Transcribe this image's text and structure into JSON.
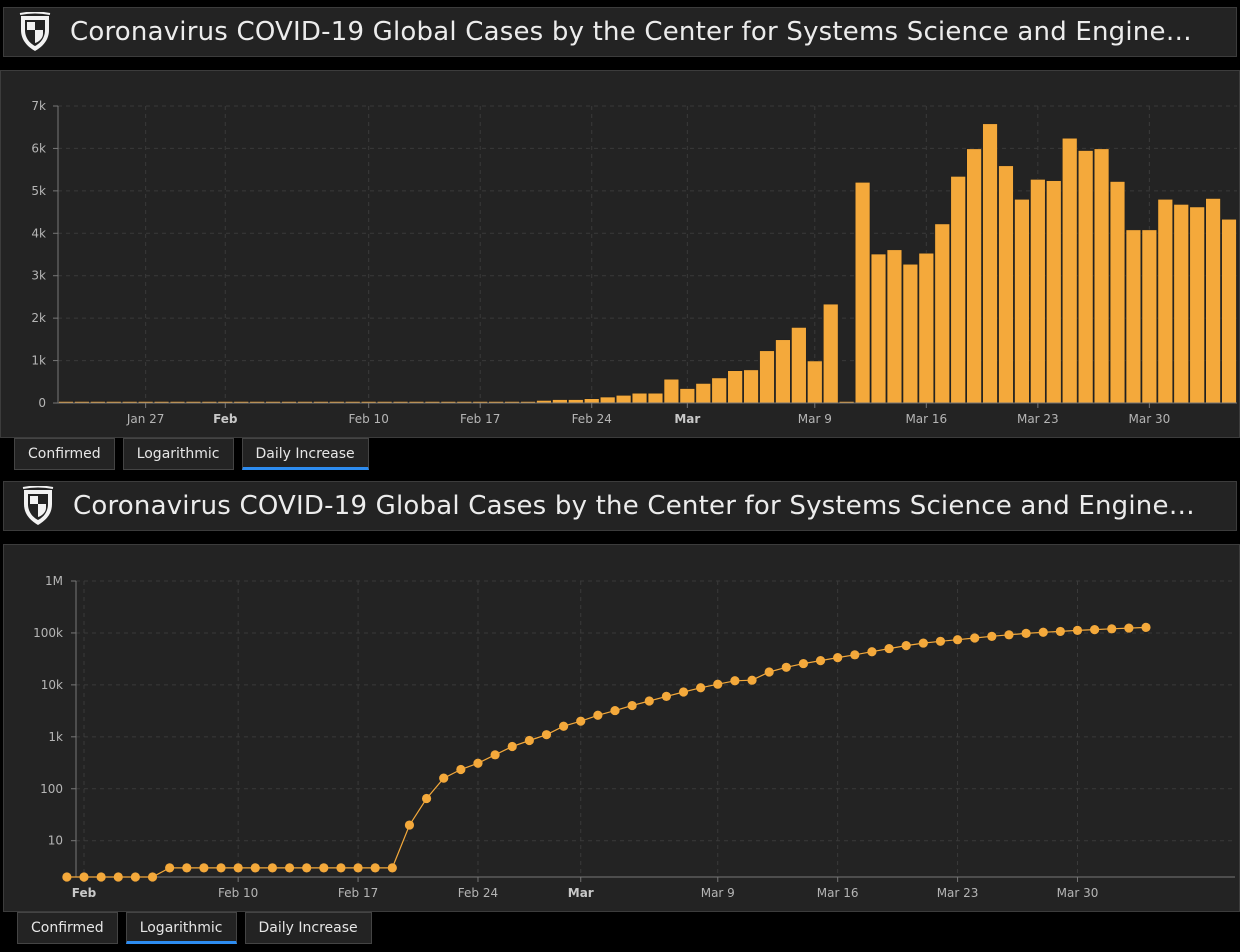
{
  "header": {
    "title": "Coronavirus COVID-19 Global Cases by the Center for Systems Science and Engineering…"
  },
  "tabs": [
    {
      "label": "Confirmed"
    },
    {
      "label": "Logarithmic"
    },
    {
      "label": "Daily Increase"
    }
  ],
  "colors": {
    "series": "#f4a93b",
    "accent": "#2d8cf0",
    "panel": "#232323"
  },
  "chart_data": [
    {
      "type": "bar",
      "title": "Daily Increase",
      "active_tab": "Daily Increase",
      "x_start": "Jan 22",
      "x_end": "Apr 2",
      "ylim": [
        0,
        7000
      ],
      "y_ticks": [
        {
          "v": 0,
          "label": "0"
        },
        {
          "v": 1000,
          "label": "1k"
        },
        {
          "v": 2000,
          "label": "2k"
        },
        {
          "v": 3000,
          "label": "3k"
        },
        {
          "v": 4000,
          "label": "4k"
        },
        {
          "v": 5000,
          "label": "5k"
        },
        {
          "v": 6000,
          "label": "6k"
        },
        {
          "v": 7000,
          "label": "7k"
        }
      ],
      "x_ticks": [
        {
          "day": 5,
          "label": "Jan 27",
          "bold": false
        },
        {
          "day": 10,
          "label": "Feb",
          "bold": true
        },
        {
          "day": 19,
          "label": "Feb 10",
          "bold": false
        },
        {
          "day": 26,
          "label": "Feb 17",
          "bold": false
        },
        {
          "day": 33,
          "label": "Feb 24",
          "bold": false
        },
        {
          "day": 39,
          "label": "Mar",
          "bold": true
        },
        {
          "day": 47,
          "label": "Mar 9",
          "bold": false
        },
        {
          "day": 54,
          "label": "Mar 16",
          "bold": false
        },
        {
          "day": 61,
          "label": "Mar 23",
          "bold": false
        },
        {
          "day": 68,
          "label": "Mar 30",
          "bold": false
        }
      ],
      "values": [
        0,
        0,
        0,
        0,
        0,
        0,
        0,
        0,
        0,
        0,
        0,
        0,
        0,
        0,
        0,
        0,
        0,
        0,
        0,
        0,
        0,
        0,
        0,
        0,
        0,
        0,
        0,
        0,
        0,
        30,
        60,
        80,
        80,
        100,
        140,
        180,
        230,
        230,
        560,
        340,
        460,
        590,
        760,
        780,
        1230,
        1490,
        1780,
        990,
        2330,
        0,
        5200,
        3510,
        3610,
        3270,
        3530,
        4220,
        5340,
        5990,
        6580,
        5590,
        4800,
        5270,
        5240,
        6240,
        5950,
        5990,
        5220,
        4080,
        4080,
        4800,
        4680,
        4620,
        4820,
        4330
      ]
    },
    {
      "type": "line",
      "title": "Logarithmic",
      "active_tab": "Logarithmic",
      "yscale": "log",
      "ylim": [
        2,
        1000000
      ],
      "x_start": "Jan 22",
      "x_end": "Apr 2",
      "y_ticks": [
        {
          "v": 10,
          "label": "10"
        },
        {
          "v": 100,
          "label": "100"
        },
        {
          "v": 1000,
          "label": "1k"
        },
        {
          "v": 10000,
          "label": "10k"
        },
        {
          "v": 100000,
          "label": "100k"
        },
        {
          "v": 1000000,
          "label": "1M"
        }
      ],
      "x_ticks": [
        {
          "day": 10,
          "label": "Feb",
          "bold": true
        },
        {
          "day": 19,
          "label": "Feb 10",
          "bold": false
        },
        {
          "day": 26,
          "label": "Feb 17",
          "bold": false
        },
        {
          "day": 33,
          "label": "Feb 24",
          "bold": false
        },
        {
          "day": 39,
          "label": "Mar",
          "bold": true
        },
        {
          "day": 47,
          "label": "Mar 9",
          "bold": false
        },
        {
          "day": 54,
          "label": "Mar 16",
          "bold": false
        },
        {
          "day": 61,
          "label": "Mar 23",
          "bold": false
        },
        {
          "day": 68,
          "label": "Mar 30",
          "bold": false
        }
      ],
      "x_first_day": 9,
      "values": [
        2,
        2,
        2,
        2,
        2,
        2,
        3,
        3,
        3,
        3,
        3,
        3,
        3,
        3,
        3,
        3,
        3,
        3,
        3,
        3,
        20,
        65,
        160,
        235,
        310,
        450,
        650,
        850,
        1100,
        1600,
        2000,
        2600,
        3200,
        4000,
        4900,
        6000,
        7300,
        8800,
        10300,
        12000,
        12300,
        17700,
        21800,
        25700,
        29300,
        33500,
        37900,
        43500,
        50000,
        57000,
        63800,
        69000,
        74000,
        80000,
        86000,
        92000,
        98000,
        103000,
        107000,
        112000,
        116000,
        120000,
        124000,
        128000
      ]
    }
  ]
}
